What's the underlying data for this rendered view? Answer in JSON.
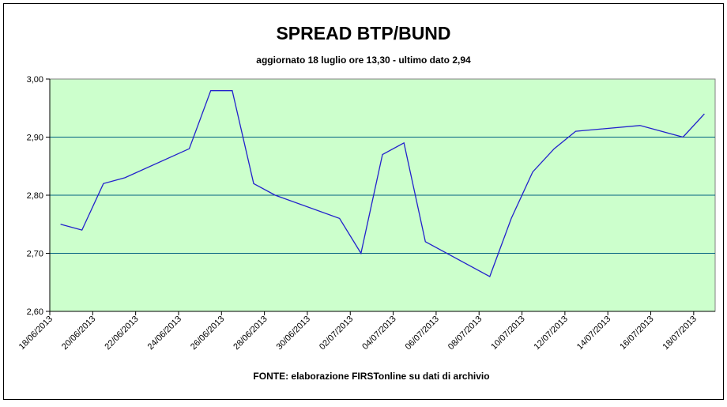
{
  "chart_data": {
    "type": "line",
    "title": "SPREAD BTP/BUND",
    "subtitle": "aggiornato 18 luglio ore 13,30 - ultimo dato 2,94",
    "footnote": "FONTE: elaborazione FIRSTonline su dati di archivio",
    "x": [
      "18/06/2013",
      "19/06/2013",
      "20/06/2013",
      "21/06/2013",
      "24/06/2013",
      "25/06/2013",
      "26/06/2013",
      "27/06/2013",
      "28/06/2013",
      "01/07/2013",
      "02/07/2013",
      "03/07/2013",
      "04/07/2013",
      "05/07/2013",
      "08/07/2013",
      "09/07/2013",
      "10/07/2013",
      "11/07/2013",
      "12/07/2013",
      "15/07/2013",
      "16/07/2013",
      "17/07/2013",
      "18/07/2013"
    ],
    "series": [
      {
        "name": "Spread",
        "color": "#2222cc",
        "values": [
          2.75,
          2.74,
          2.82,
          2.83,
          2.88,
          2.98,
          2.98,
          2.82,
          2.8,
          2.76,
          2.7,
          2.87,
          2.89,
          2.72,
          2.66,
          2.76,
          2.84,
          2.88,
          2.91,
          2.92,
          2.91,
          2.9,
          2.94
        ]
      }
    ],
    "xlim": [
      "18/06/2013",
      "18/07/2013"
    ],
    "xticks": [
      "18/06/2013",
      "20/06/2013",
      "22/06/2013",
      "24/06/2013",
      "26/06/2013",
      "28/06/2013",
      "30/06/2013",
      "02/07/2013",
      "04/07/2013",
      "06/07/2013",
      "08/07/2013",
      "10/07/2013",
      "12/07/2013",
      "14/07/2013",
      "16/07/2013",
      "18/07/2013"
    ],
    "ylim": [
      2.6,
      3.0
    ],
    "yticks": [
      {
        "value": 2.6,
        "label": "2,60"
      },
      {
        "value": 2.7,
        "label": "2,70"
      },
      {
        "value": 2.8,
        "label": "2,80"
      },
      {
        "value": 2.9,
        "label": "2,90"
      },
      {
        "value": 3.0,
        "label": "3,00"
      }
    ],
    "grid": true,
    "plot_background": "#ccffcc",
    "grid_color": "#006080"
  }
}
